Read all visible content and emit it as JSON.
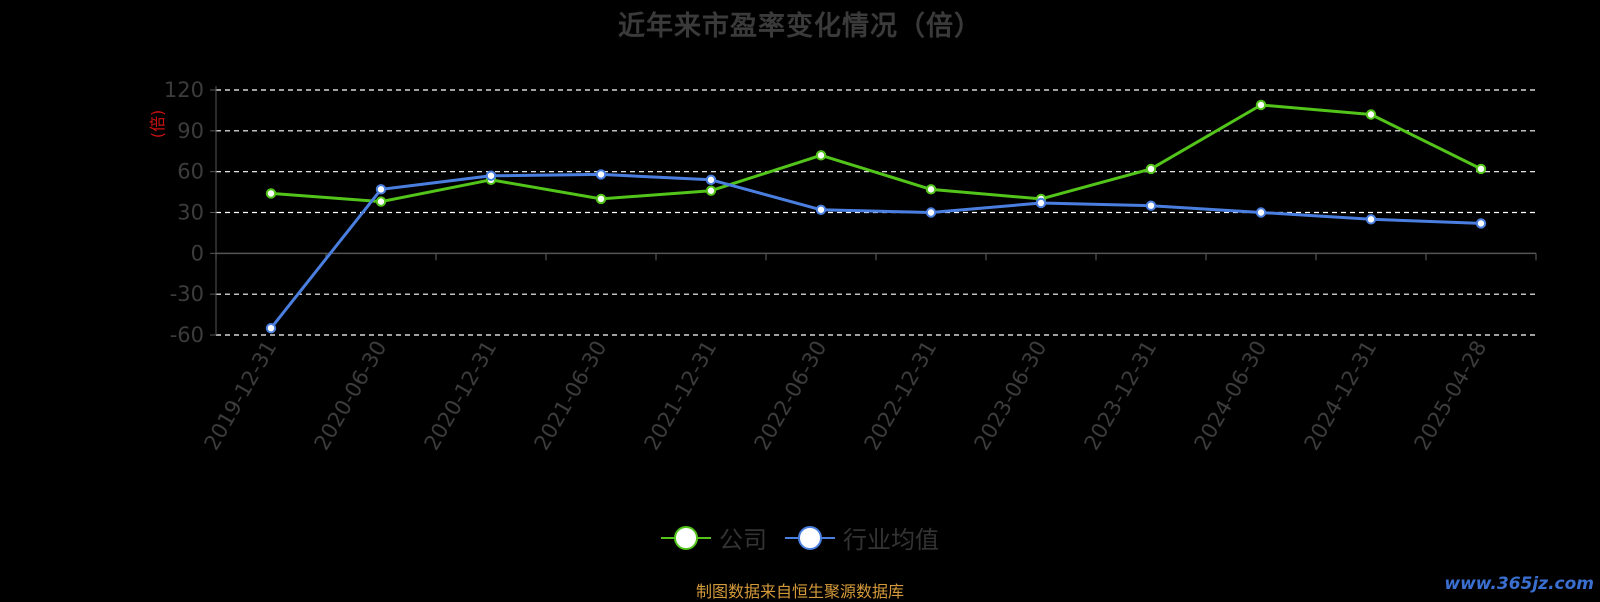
{
  "title": "近年来市盈率变化情况（倍）",
  "y_unit": "(倍)",
  "source": "制图数据来自恒生聚源数据库",
  "watermark": "www.365jz.com",
  "colors": {
    "company": "#52c41a",
    "industry": "#4a7fe0",
    "grid": "#ffffff",
    "axis": "#555555",
    "tick_text": "#3c3c3c"
  },
  "chart_data": {
    "type": "line",
    "title": "近年来市盈率变化情况（倍）",
    "ylabel": "(倍)",
    "ylim": [
      -60,
      120
    ],
    "yticks": [
      -60,
      -30,
      0,
      30,
      60,
      90,
      120
    ],
    "grid": true,
    "legend_position": "bottom-center",
    "categories": [
      "2019-12-31",
      "2020-06-30",
      "2020-12-31",
      "2021-06-30",
      "2021-12-31",
      "2022-06-30",
      "2022-12-31",
      "2023-06-30",
      "2023-12-31",
      "2024-06-30",
      "2024-12-31",
      "2025-04-28"
    ],
    "series": [
      {
        "name": "公司",
        "color": "#52c41a",
        "values": [
          44,
          38,
          54,
          40,
          46,
          72,
          47,
          40,
          62,
          109,
          102,
          62
        ]
      },
      {
        "name": "行业均值",
        "color": "#4a7fe0",
        "values": [
          -55,
          47,
          57,
          58,
          54,
          32,
          30,
          37,
          35,
          30,
          25,
          22
        ]
      }
    ]
  }
}
